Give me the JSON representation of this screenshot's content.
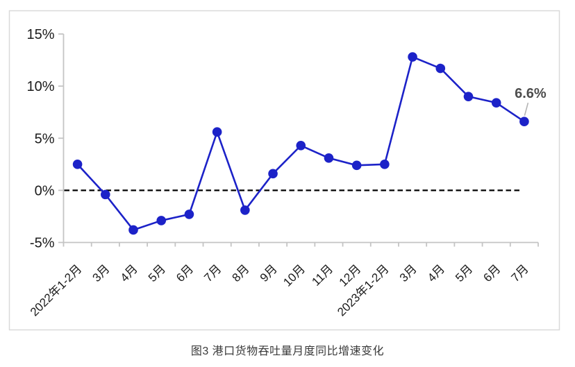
{
  "figure": {
    "caption": "图3 港口货物吞吐量月度同比增速变化"
  },
  "chart_data": {
    "type": "line",
    "title": "图3 港口货物吞吐量月度同比增速变化",
    "categories": [
      "2022年1-2月",
      "3月",
      "4月",
      "5月",
      "6月",
      "7月",
      "8月",
      "9月",
      "10月",
      "11月",
      "12月",
      "2023年1-2月",
      "3月",
      "4月",
      "5月",
      "6月",
      "7月"
    ],
    "series": [
      {
        "name": "港口货物吞吐量月度同比增速",
        "values": [
          2.5,
          -0.4,
          -3.8,
          -2.9,
          -2.3,
          5.6,
          -1.9,
          1.6,
          4.3,
          3.1,
          2.4,
          2.5,
          12.8,
          11.7,
          9.0,
          8.4,
          6.6
        ]
      }
    ],
    "ylim": [
      -5,
      15
    ],
    "yticks": [
      {
        "value": 15,
        "label": "15%"
      },
      {
        "value": 10,
        "label": "10%"
      },
      {
        "value": 5,
        "label": "5%"
      },
      {
        "value": 0,
        "label": "0%"
      },
      {
        "value": -5,
        "label": "-5%"
      }
    ],
    "xlabel": "",
    "ylabel": "",
    "grid": false,
    "legend": "none",
    "zero_line": {
      "style": "dashed",
      "color": "#000000"
    },
    "annotation": {
      "text": "6.6%",
      "point_index": 16,
      "color": "#4d4d4d",
      "leader_color": "#b3b3b3"
    },
    "colors": {
      "series": "#1c22c8",
      "axis": "#c4c4c4",
      "frame": "#d9d9d9",
      "tick_label": "#1a1a1a",
      "title": "#3a3a3a"
    }
  }
}
